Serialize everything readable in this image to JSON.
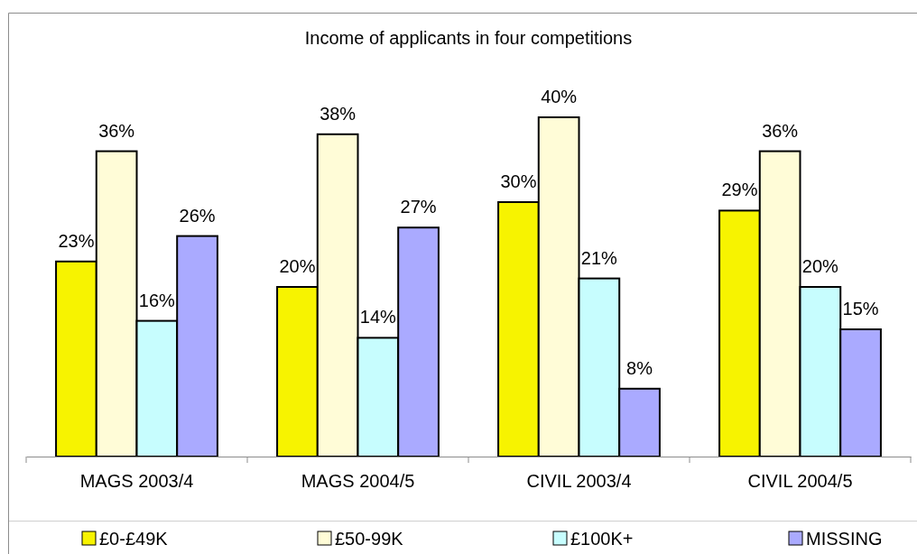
{
  "chart_data": {
    "type": "bar",
    "title": "Income of applicants in four competitions",
    "categories": [
      "MAGS 2003/4",
      "MAGS 2004/5",
      "CIVIL 2003/4",
      "CIVIL 2004/5"
    ],
    "series": [
      {
        "name": "£0-£49K",
        "color": "#f7f300",
        "values": [
          23,
          20,
          30,
          29
        ],
        "value_labels": [
          "23%",
          "20%",
          "30%",
          "29%"
        ]
      },
      {
        "name": "£50-99K",
        "color": "#fffcd7",
        "values": [
          36,
          38,
          40,
          36
        ],
        "value_labels": [
          "36%",
          "38%",
          "40%",
          "36%"
        ]
      },
      {
        "name": "£100K+",
        "color": "#c7fdfe",
        "values": [
          16,
          14,
          21,
          20
        ],
        "value_labels": [
          "16%",
          "14%",
          "21%",
          "20%"
        ]
      },
      {
        "name": "MISSING",
        "color": "#aaaaff",
        "values": [
          26,
          27,
          8,
          15
        ],
        "value_labels": [
          "26%",
          "27%",
          "8%",
          "15%"
        ]
      }
    ],
    "legend": "bottom"
  }
}
